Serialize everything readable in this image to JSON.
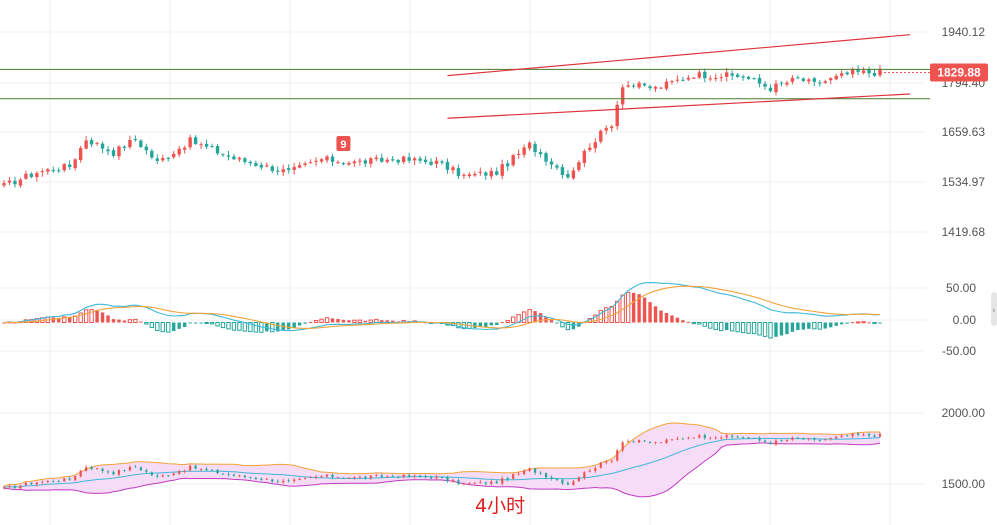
{
  "timeframe_label": "4小时",
  "colors": {
    "up": "#ef5350",
    "down": "#26a69a",
    "support_line": "#4a7d2c",
    "channel_line": "#e0323c",
    "grid": "#f0f0f0",
    "macd_fast": "#3fb8d8",
    "macd_slow": "#f2a33a",
    "boll_upper": "#f2a33a",
    "boll_mid": "#3fb8d8",
    "boll_lower": "#c03cc0",
    "boll_fill": "#f6dcf6",
    "price_tag": "#ef5350"
  },
  "main_panel": {
    "y_ticks": [
      "1940.12",
      "1794.40",
      "1659.63",
      "1534.97",
      "1419.68"
    ],
    "price_range": [
      1345,
      1990
    ],
    "current_price": "1829.88",
    "current_price_value": 1829.88,
    "marker_label": "9",
    "horizontal_levels": [
      1838,
      1763
    ],
    "channel_upper": [
      {
        "bar": 81,
        "price": 1822
      },
      {
        "bar": 160,
        "price": 1920
      }
    ],
    "channel_lower": [
      {
        "bar": 81,
        "price": 1713
      },
      {
        "bar": 160,
        "price": 1771
      }
    ]
  },
  "macd_panel": {
    "y_ticks": [
      "50.00",
      "0.00",
      "-50.00"
    ],
    "range": [
      -70,
      70
    ]
  },
  "boll_panel": {
    "y_ticks": [
      "2000.00",
      "1500.00"
    ],
    "range": [
      1450,
      2050
    ]
  },
  "chart_data": {
    "type": "candlestick",
    "x_count": 161,
    "y_unit": "price",
    "anchors": [
      [
        0,
        1540
      ],
      [
        6,
        1575
      ],
      [
        12,
        1590
      ],
      [
        15,
        1660
      ],
      [
        20,
        1625
      ],
      [
        24,
        1660
      ],
      [
        28,
        1600
      ],
      [
        34,
        1655
      ],
      [
        42,
        1610
      ],
      [
        52,
        1575
      ],
      [
        58,
        1608
      ],
      [
        64,
        1600
      ],
      [
        72,
        1608
      ],
      [
        79,
        1600
      ],
      [
        84,
        1565
      ],
      [
        90,
        1575
      ],
      [
        96,
        1645
      ],
      [
        103,
        1565
      ],
      [
        107,
        1645
      ],
      [
        111,
        1700
      ],
      [
        113,
        1800
      ],
      [
        119,
        1790
      ],
      [
        126,
        1825
      ],
      [
        135,
        1820
      ],
      [
        140,
        1790
      ],
      [
        145,
        1815
      ],
      [
        148,
        1800
      ],
      [
        155,
        1830
      ],
      [
        160,
        1830
      ]
    ],
    "macd_segments": [
      [
        0,
        25,
        1
      ],
      [
        25,
        38,
        -1
      ],
      [
        38,
        40,
        1
      ],
      [
        40,
        46,
        -1
      ],
      [
        46,
        50,
        1
      ],
      [
        50,
        60,
        -1
      ],
      [
        60,
        63,
        1
      ],
      [
        63,
        70,
        0.4
      ],
      [
        70,
        74,
        -1
      ],
      [
        74,
        83,
        1
      ],
      [
        83,
        95,
        1
      ],
      [
        95,
        98,
        -1
      ],
      [
        98,
        115,
        -1
      ],
      [
        115,
        138,
        -1
      ],
      [
        138,
        148,
        1
      ],
      [
        148,
        160,
        -1
      ]
    ]
  }
}
